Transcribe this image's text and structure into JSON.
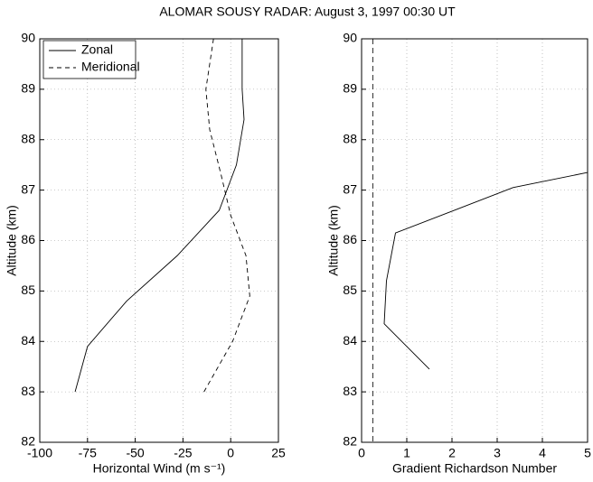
{
  "title": "ALOMAR SOUSY RADAR:  August 3, 1997   00:30 UT",
  "chart_data": [
    {
      "type": "line",
      "xlabel": "Horizontal Wind (m s⁻¹)",
      "ylabel": "Altitude (km)",
      "xlim": [
        -100,
        25
      ],
      "xticks": [
        -100,
        -75,
        -50,
        -25,
        0,
        25
      ],
      "ylim": [
        82,
        90
      ],
      "yticks": [
        82,
        83,
        84,
        85,
        86,
        87,
        88,
        89,
        90
      ],
      "grid": true,
      "legend": "upper left",
      "series": [
        {
          "name": "Zonal",
          "color": "#000000",
          "linestyle": "solid",
          "x": [
            -81.5,
            -75,
            -54.5,
            -28,
            -6,
            3,
            7,
            6,
            6
          ],
          "y": [
            83.0,
            83.9,
            84.8,
            85.7,
            86.6,
            87.5,
            88.4,
            89.0,
            90.0
          ]
        },
        {
          "name": "Meridional",
          "color": "#000000",
          "linestyle": "dashed",
          "x": [
            -14,
            1,
            10,
            8,
            0,
            -5,
            -11,
            -13,
            -9
          ],
          "y": [
            83.0,
            84.0,
            84.9,
            85.7,
            86.5,
            87.3,
            88.2,
            89.0,
            90.0
          ]
        }
      ]
    },
    {
      "type": "line",
      "xlabel": "Gradient Richardson Number",
      "ylabel": "Altitude (km)",
      "xlim": [
        0,
        5
      ],
      "xticks": [
        0,
        1,
        2,
        3,
        4,
        5
      ],
      "ylim": [
        82,
        90
      ],
      "yticks": [
        82,
        83,
        84,
        85,
        86,
        87,
        88,
        89,
        90
      ],
      "grid": true,
      "vline": 0.25,
      "series": [
        {
          "color": "#000000",
          "linestyle": "solid",
          "x": [
            1.5,
            0.5,
            0.55,
            0.75,
            3.35,
            5.0
          ],
          "y": [
            83.45,
            84.35,
            85.2,
            86.15,
            87.05,
            87.35
          ]
        }
      ]
    }
  ]
}
